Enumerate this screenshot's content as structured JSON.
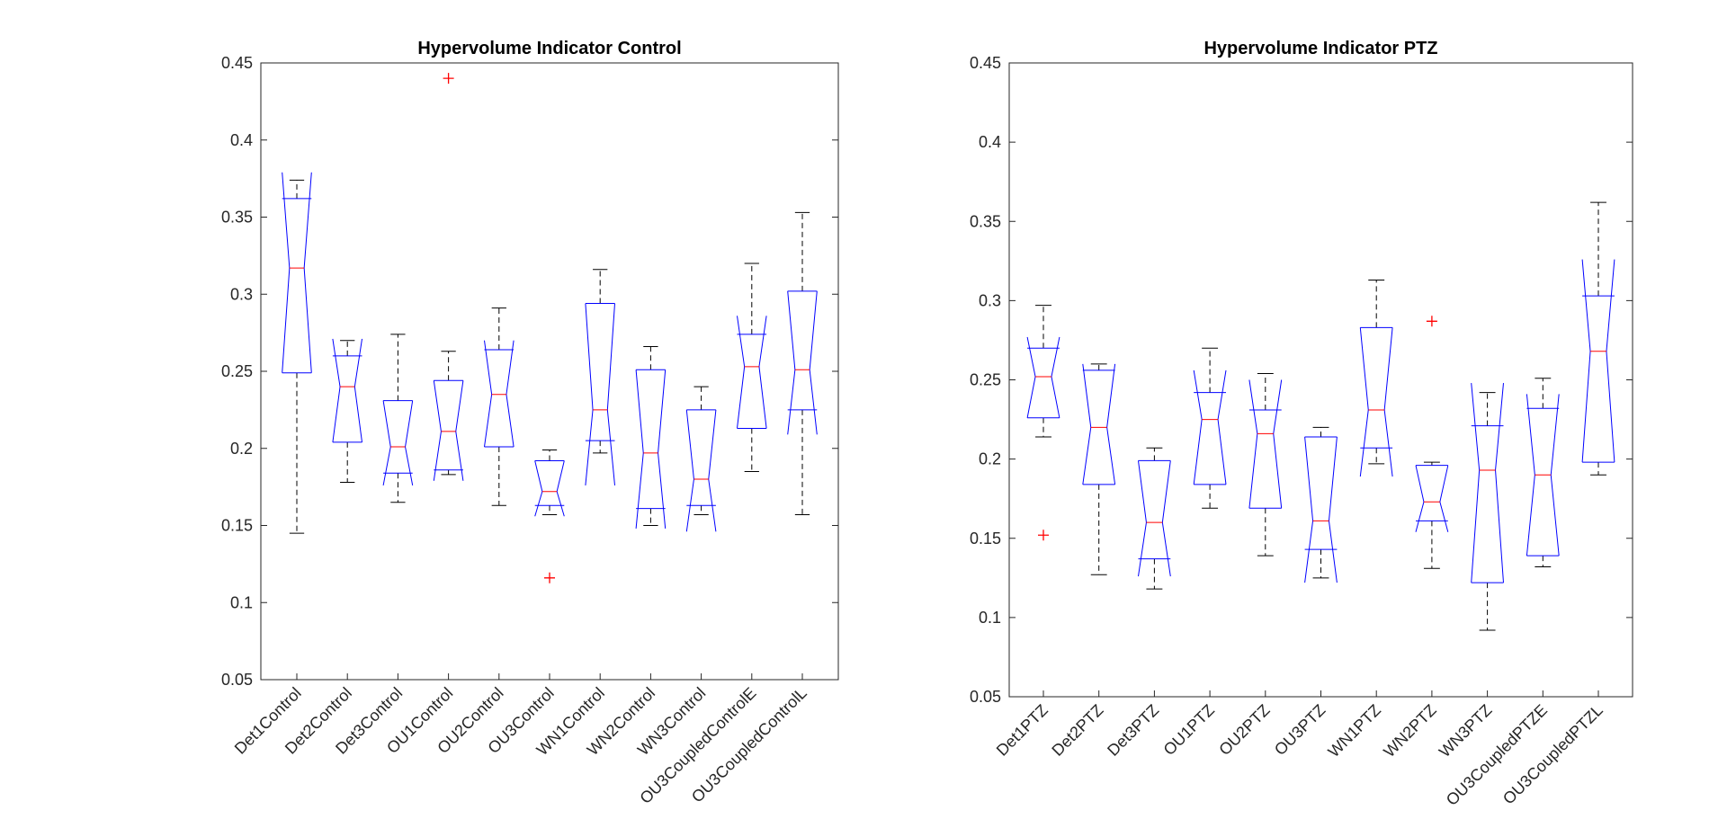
{
  "chart_data": [
    {
      "type": "boxplot",
      "title": "Hypervolume Indicator Control",
      "xlabel": "",
      "ylabel": "",
      "ylim": [
        0.05,
        0.45
      ],
      "yticks": [
        "0.05",
        "0.1",
        "0.15",
        "0.2",
        "0.25",
        "0.3",
        "0.35",
        "0.4",
        "0.45"
      ],
      "grid": false,
      "notched": true,
      "categories": [
        "Det1Control",
        "Det2Control",
        "Det3Control",
        "OU1Control",
        "OU2Control",
        "OU3Control",
        "WN1Control",
        "WN2Control",
        "WN3Control",
        "OU3CoupledControlE",
        "OU3CoupledControlL"
      ],
      "boxes": [
        {
          "whisker_low": 0.145,
          "q1": 0.249,
          "median": 0.317,
          "q3": 0.362,
          "whisker_high": 0.374,
          "notch_low": 0.249,
          "notch_high": 0.379,
          "outliers": []
        },
        {
          "whisker_low": 0.178,
          "q1": 0.204,
          "median": 0.24,
          "q3": 0.26,
          "whisker_high": 0.27,
          "notch_low": 0.204,
          "notch_high": 0.271,
          "outliers": []
        },
        {
          "whisker_low": 0.165,
          "q1": 0.184,
          "median": 0.201,
          "q3": 0.231,
          "whisker_high": 0.274,
          "notch_low": 0.176,
          "notch_high": 0.231,
          "outliers": []
        },
        {
          "whisker_low": 0.183,
          "q1": 0.186,
          "median": 0.211,
          "q3": 0.244,
          "whisker_high": 0.263,
          "notch_low": 0.179,
          "notch_high": 0.244,
          "outliers": [
            0.44
          ]
        },
        {
          "whisker_low": 0.163,
          "q1": 0.201,
          "median": 0.235,
          "q3": 0.264,
          "whisker_high": 0.291,
          "notch_low": 0.201,
          "notch_high": 0.27,
          "outliers": []
        },
        {
          "whisker_low": 0.157,
          "q1": 0.163,
          "median": 0.172,
          "q3": 0.192,
          "whisker_high": 0.199,
          "notch_low": 0.156,
          "notch_high": 0.192,
          "outliers": [
            0.116
          ]
        },
        {
          "whisker_low": 0.197,
          "q1": 0.205,
          "median": 0.225,
          "q3": 0.294,
          "whisker_high": 0.316,
          "notch_low": 0.176,
          "notch_high": 0.294,
          "outliers": []
        },
        {
          "whisker_low": 0.15,
          "q1": 0.161,
          "median": 0.197,
          "q3": 0.251,
          "whisker_high": 0.266,
          "notch_low": 0.148,
          "notch_high": 0.251,
          "outliers": []
        },
        {
          "whisker_low": 0.157,
          "q1": 0.163,
          "median": 0.18,
          "q3": 0.225,
          "whisker_high": 0.24,
          "notch_low": 0.146,
          "notch_high": 0.225,
          "outliers": []
        },
        {
          "whisker_low": 0.185,
          "q1": 0.213,
          "median": 0.253,
          "q3": 0.274,
          "whisker_high": 0.32,
          "notch_low": 0.213,
          "notch_high": 0.286,
          "outliers": []
        },
        {
          "whisker_low": 0.157,
          "q1": 0.225,
          "median": 0.251,
          "q3": 0.302,
          "whisker_high": 0.353,
          "notch_low": 0.209,
          "notch_high": 0.302,
          "outliers": []
        }
      ]
    },
    {
      "type": "boxplot",
      "title": "Hypervolume Indicator PTZ",
      "xlabel": "",
      "ylabel": "",
      "ylim": [
        0.05,
        0.45
      ],
      "yticks": [
        "0.05",
        "0.1",
        "0.15",
        "0.2",
        "0.25",
        "0.3",
        "0.35",
        "0.4",
        "0.45"
      ],
      "grid": false,
      "notched": true,
      "categories": [
        "Det1PTZ",
        "Det2PTZ",
        "Det3PTZ",
        "OU1PTZ",
        "OU2PTZ",
        "OU3PTZ",
        "WN1PTZ",
        "WN2PTZ",
        "WN3PTZ",
        "OU3CoupledPTZE",
        "OU3CoupledPTZL"
      ],
      "boxes": [
        {
          "whisker_low": 0.214,
          "q1": 0.226,
          "median": 0.252,
          "q3": 0.27,
          "whisker_high": 0.297,
          "notch_low": 0.226,
          "notch_high": 0.277,
          "outliers": [
            0.152
          ]
        },
        {
          "whisker_low": 0.127,
          "q1": 0.184,
          "median": 0.22,
          "q3": 0.256,
          "whisker_high": 0.26,
          "notch_low": 0.184,
          "notch_high": 0.26,
          "outliers": []
        },
        {
          "whisker_low": 0.118,
          "q1": 0.137,
          "median": 0.16,
          "q3": 0.199,
          "whisker_high": 0.207,
          "notch_low": 0.126,
          "notch_high": 0.199,
          "outliers": []
        },
        {
          "whisker_low": 0.169,
          "q1": 0.184,
          "median": 0.225,
          "q3": 0.242,
          "whisker_high": 0.27,
          "notch_low": 0.184,
          "notch_high": 0.256,
          "outliers": []
        },
        {
          "whisker_low": 0.139,
          "q1": 0.169,
          "median": 0.216,
          "q3": 0.231,
          "whisker_high": 0.254,
          "notch_low": 0.169,
          "notch_high": 0.25,
          "outliers": []
        },
        {
          "whisker_low": 0.125,
          "q1": 0.143,
          "median": 0.161,
          "q3": 0.214,
          "whisker_high": 0.22,
          "notch_low": 0.122,
          "notch_high": 0.214,
          "outliers": []
        },
        {
          "whisker_low": 0.197,
          "q1": 0.207,
          "median": 0.231,
          "q3": 0.283,
          "whisker_high": 0.313,
          "notch_low": 0.189,
          "notch_high": 0.283,
          "outliers": []
        },
        {
          "whisker_low": 0.131,
          "q1": 0.161,
          "median": 0.173,
          "q3": 0.196,
          "whisker_high": 0.198,
          "notch_low": 0.154,
          "notch_high": 0.196,
          "outliers": [
            0.287
          ]
        },
        {
          "whisker_low": 0.092,
          "q1": 0.122,
          "median": 0.193,
          "q3": 0.221,
          "whisker_high": 0.242,
          "notch_low": 0.122,
          "notch_high": 0.248,
          "outliers": []
        },
        {
          "whisker_low": 0.132,
          "q1": 0.139,
          "median": 0.19,
          "q3": 0.232,
          "whisker_high": 0.251,
          "notch_low": 0.139,
          "notch_high": 0.241,
          "outliers": []
        },
        {
          "whisker_low": 0.19,
          "q1": 0.198,
          "median": 0.268,
          "q3": 0.303,
          "whisker_high": 0.362,
          "notch_low": 0.198,
          "notch_high": 0.326,
          "outliers": []
        }
      ]
    }
  ]
}
